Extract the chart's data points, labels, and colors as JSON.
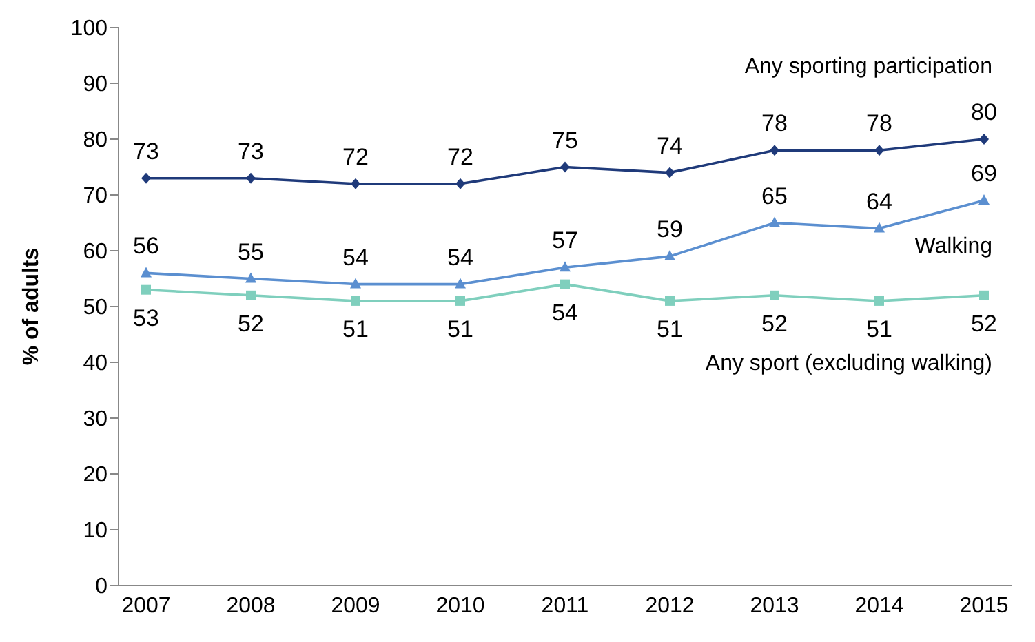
{
  "chart_data": {
    "type": "line",
    "ylabel": "% of adults",
    "categories": [
      "2007",
      "2008",
      "2009",
      "2010",
      "2011",
      "2012",
      "2013",
      "2014",
      "2015"
    ],
    "series": [
      {
        "name": "Any sporting participation",
        "color": "#1f3a7a",
        "marker": "diamond",
        "values": [
          73,
          73,
          72,
          72,
          75,
          74,
          78,
          78,
          80
        ]
      },
      {
        "name": "Walking",
        "color": "#5b8fd0",
        "marker": "triangle",
        "values": [
          56,
          55,
          54,
          54,
          57,
          59,
          65,
          64,
          69
        ]
      },
      {
        "name": "Any sport (excluding walking)",
        "color": "#7fcfbd",
        "marker": "square",
        "values": [
          53,
          52,
          51,
          51,
          54,
          51,
          52,
          51,
          52
        ]
      }
    ],
    "ylim": [
      0,
      100
    ],
    "yticks": [
      0,
      10,
      20,
      30,
      40,
      50,
      60,
      70,
      80,
      90,
      100
    ],
    "grid": false,
    "legend": false,
    "data_labels": true,
    "line_style": "solid"
  }
}
